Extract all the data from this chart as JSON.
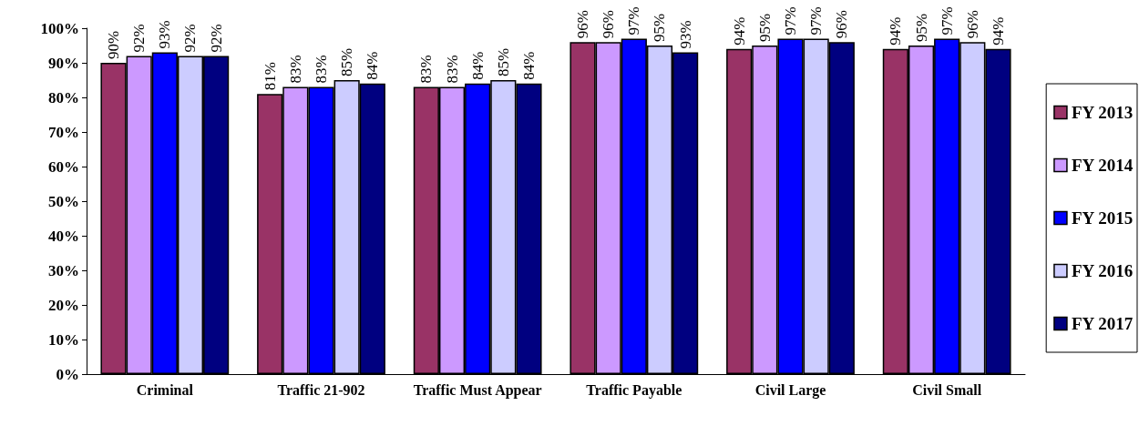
{
  "chart_data": {
    "type": "bar",
    "categories": [
      "Criminal",
      "Traffic 21-902",
      "Traffic Must Appear",
      "Traffic Payable",
      "Civil Large",
      "Civil Small"
    ],
    "series": [
      {
        "name": "FY 2013",
        "color": "#993366",
        "values": [
          90,
          81,
          83,
          96,
          94,
          94
        ],
        "value_labels": [
          "90%",
          "81%",
          "83%",
          "96%",
          "94%",
          "94%"
        ]
      },
      {
        "name": "FY 2014",
        "color": "#cc99ff",
        "values": [
          92,
          83,
          83,
          96,
          95,
          95
        ],
        "value_labels": [
          "92%",
          "83%",
          "83%",
          "96%",
          "95%",
          "95%"
        ]
      },
      {
        "name": "FY 2015",
        "color": "#0000ff",
        "values": [
          93,
          83,
          84,
          97,
          97,
          97
        ],
        "value_labels": [
          "93%",
          "83%",
          "84%",
          "97%",
          "97%",
          "97%"
        ]
      },
      {
        "name": "FY 2016",
        "color": "#ccccff",
        "values": [
          92,
          85,
          85,
          95,
          97,
          96
        ],
        "value_labels": [
          "92%",
          "85%",
          "85%",
          "95%",
          "97%",
          "96%"
        ]
      },
      {
        "name": "FY 2017",
        "color": "#000080",
        "values": [
          92,
          84,
          84,
          93,
          96,
          94
        ],
        "value_labels": [
          "92%",
          "84%",
          "84%",
          "93%",
          "96%",
          "94%"
        ]
      }
    ],
    "ylim": [
      0,
      100
    ],
    "yticks": [
      {
        "value": 0,
        "label": "0%"
      },
      {
        "value": 10,
        "label": "10%"
      },
      {
        "value": 20,
        "label": "20%"
      },
      {
        "value": 30,
        "label": "30%"
      },
      {
        "value": 40,
        "label": "40%"
      },
      {
        "value": 50,
        "label": "50%"
      },
      {
        "value": 60,
        "label": "60%"
      },
      {
        "value": 70,
        "label": "70%"
      },
      {
        "value": 80,
        "label": "80%"
      },
      {
        "value": 90,
        "label": "90%"
      },
      {
        "value": 100,
        "label": "100%"
      }
    ],
    "grid": false,
    "legend": "right"
  }
}
